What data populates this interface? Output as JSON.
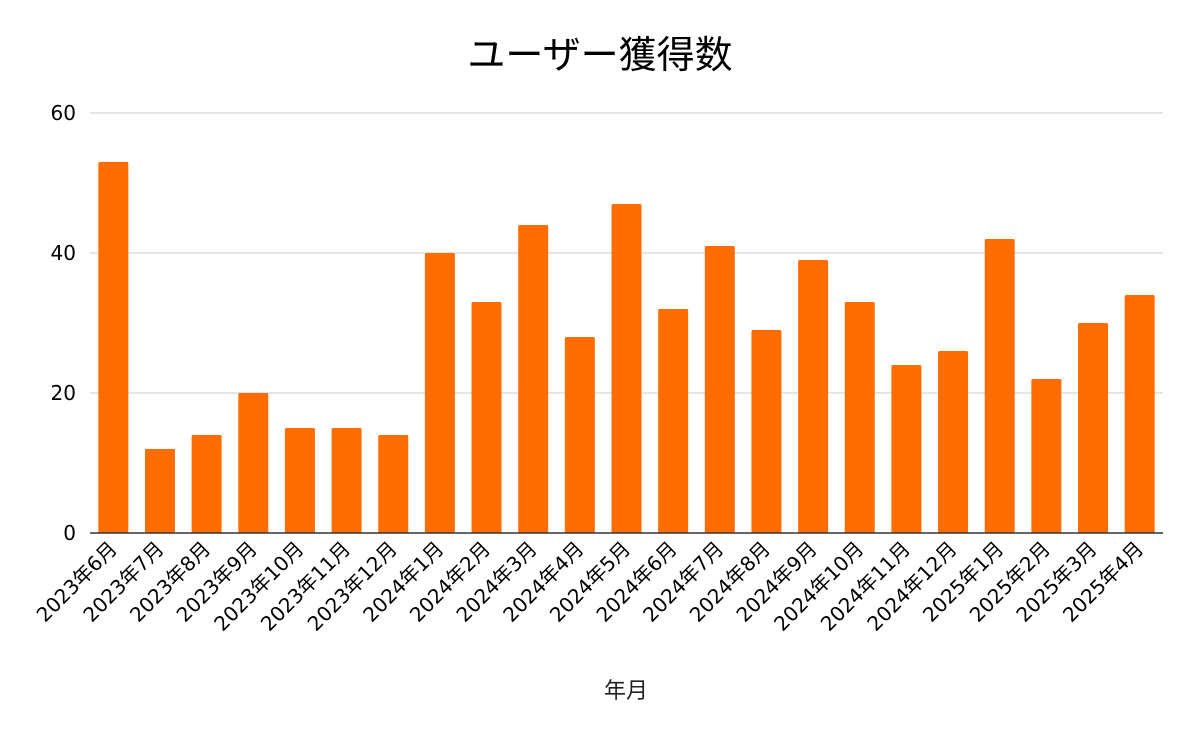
{
  "chart_data": {
    "type": "bar",
    "title": "ユーザー獲得数",
    "xlabel": "年月",
    "ylabel": "",
    "ylim": [
      0,
      60
    ],
    "yticks": [
      0,
      20,
      40,
      60
    ],
    "grid": true,
    "legend": "none",
    "bar_color": "#ff6d01",
    "categories": [
      "2023年6月",
      "2023年7月",
      "2023年8月",
      "2023年9月",
      "2023年10月",
      "2023年11月",
      "2023年12月",
      "2024年1月",
      "2024年2月",
      "2024年3月",
      "2024年4月",
      "2024年5月",
      "2024年6月",
      "2024年7月",
      "2024年8月",
      "2024年9月",
      "2024年10月",
      "2024年11月",
      "2024年12月",
      "2025年1月",
      "2025年2月",
      "2025年3月",
      "2025年4月"
    ],
    "values": [
      53,
      12,
      14,
      20,
      15,
      15,
      14,
      40,
      33,
      44,
      28,
      47,
      32,
      41,
      29,
      39,
      33,
      24,
      26,
      42,
      22,
      30,
      34
    ]
  }
}
